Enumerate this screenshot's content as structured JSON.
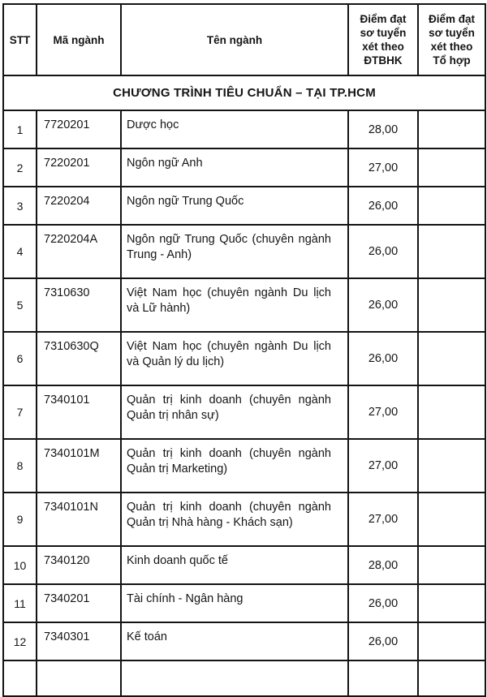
{
  "page": {
    "background": "#ffffff",
    "border_color": "#141414",
    "text_color": "#151515"
  },
  "table": {
    "headers": [
      "STT",
      "Mã ngành",
      "Tên ngành",
      "Điểm đạt sơ tuyển xét theo ĐTBHK",
      "Điểm đạt sơ tuyển xét theo Tổ hợp"
    ],
    "section_title": "CHƯƠNG TRÌNH TIÊU CHUẨN – TẠI TP.HCM",
    "rows": [
      {
        "stt": "1",
        "ma_nganh": "7720201",
        "ten_nganh": "Dược học",
        "diem_dtbhk": "28,00",
        "diem_tohop": ""
      },
      {
        "stt": "2",
        "ma_nganh": "7220201",
        "ten_nganh": "Ngôn ngữ Anh",
        "diem_dtbhk": "27,00",
        "diem_tohop": ""
      },
      {
        "stt": "3",
        "ma_nganh": "7220204",
        "ten_nganh": "Ngôn ngữ Trung Quốc",
        "diem_dtbhk": "26,00",
        "diem_tohop": ""
      },
      {
        "stt": "4",
        "ma_nganh": "7220204A",
        "ten_nganh": "Ngôn ngữ Trung Quốc (chuyên ngành Trung - Anh)",
        "diem_dtbhk": "26,00",
        "diem_tohop": ""
      },
      {
        "stt": "5",
        "ma_nganh": "7310630",
        "ten_nganh": "Việt Nam học (chuyên ngành Du lịch và Lữ hành)",
        "diem_dtbhk": "26,00",
        "diem_tohop": ""
      },
      {
        "stt": "6",
        "ma_nganh": "7310630Q",
        "ten_nganh": "Việt Nam học (chuyên ngành Du lịch và Quản lý du lịch)",
        "diem_dtbhk": "26,00",
        "diem_tohop": ""
      },
      {
        "stt": "7",
        "ma_nganh": "7340101",
        "ten_nganh": "Quản trị kinh doanh (chuyên ngành Quản trị nhân sự)",
        "diem_dtbhk": "27,00",
        "diem_tohop": ""
      },
      {
        "stt": "8",
        "ma_nganh": "7340101M",
        "ten_nganh": "Quản trị kinh doanh (chuyên ngành Quản trị Marketing)",
        "diem_dtbhk": "27,00",
        "diem_tohop": ""
      },
      {
        "stt": "9",
        "ma_nganh": "7340101N",
        "ten_nganh": "Quản trị kinh doanh (chuyên ngành Quản trị Nhà hàng - Khách sạn)",
        "diem_dtbhk": "27,00",
        "diem_tohop": ""
      },
      {
        "stt": "10",
        "ma_nganh": "7340120",
        "ten_nganh": "Kinh doanh quốc tế",
        "diem_dtbhk": "28,00",
        "diem_tohop": ""
      },
      {
        "stt": "11",
        "ma_nganh": "7340201",
        "ten_nganh": "Tài chính - Ngân hàng",
        "diem_dtbhk": "26,00",
        "diem_tohop": ""
      },
      {
        "stt": "12",
        "ma_nganh": "7340301",
        "ten_nganh": "Kế toán",
        "diem_dtbhk": "26,00",
        "diem_tohop": ""
      }
    ]
  }
}
